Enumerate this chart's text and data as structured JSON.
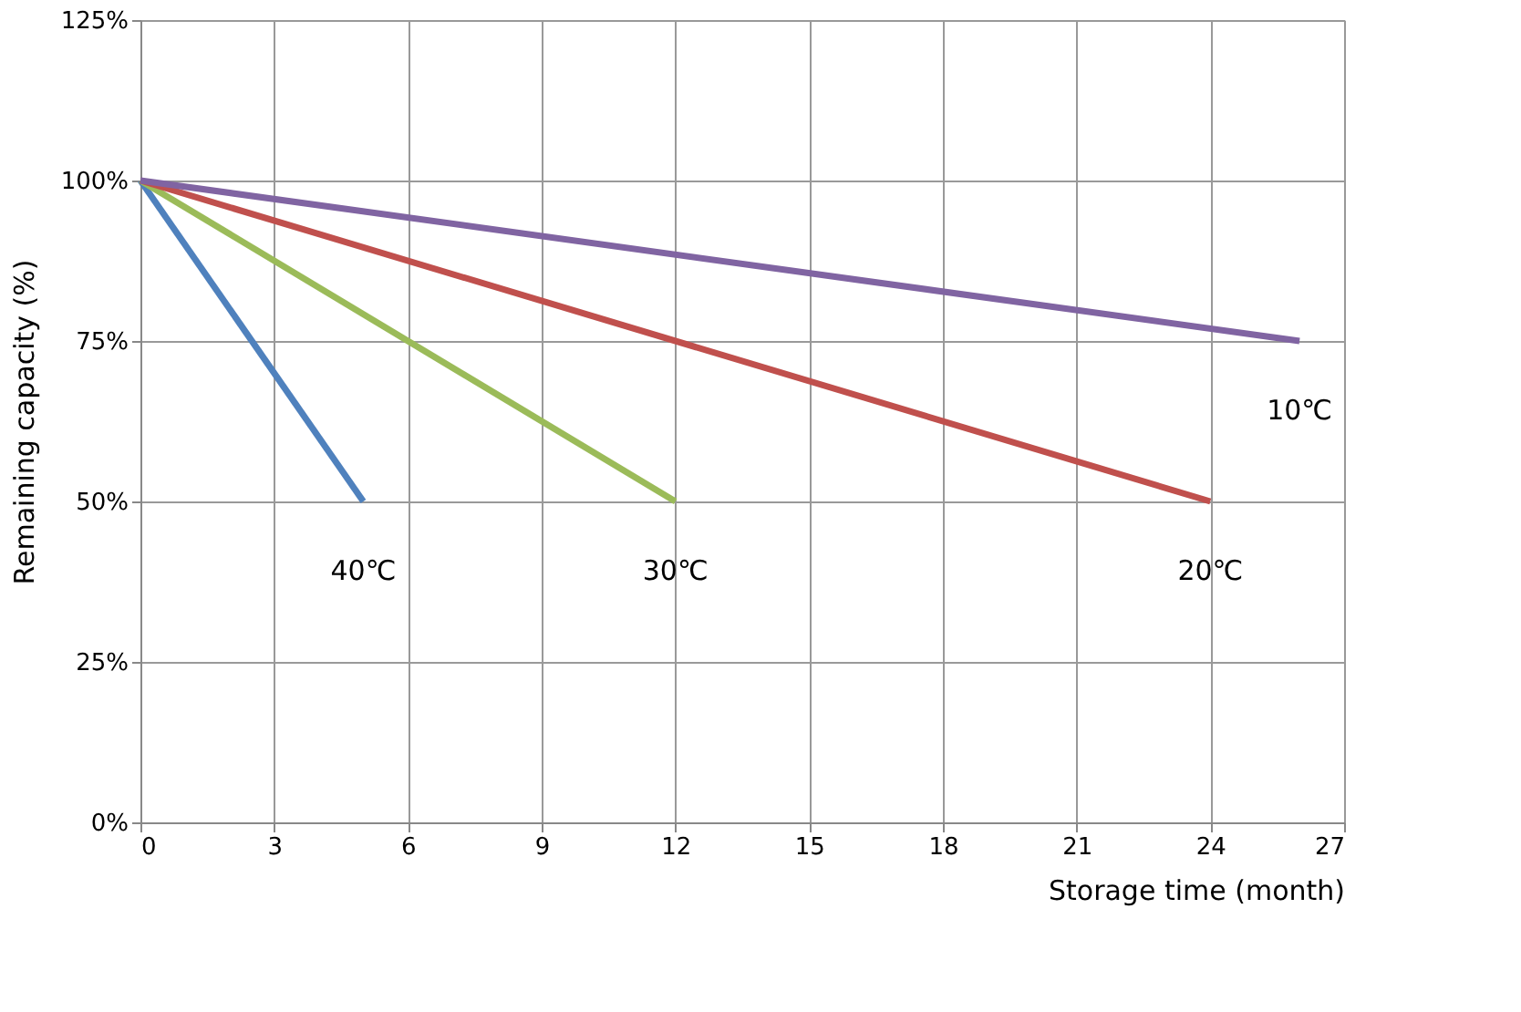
{
  "chart_data": {
    "type": "line",
    "xlabel": "Storage time (month)",
    "ylabel": "Remaining capacity (%)",
    "series": [
      {
        "name": "40℃",
        "color": "#4f81bd",
        "x": [
          0,
          5
        ],
        "values": [
          100,
          50
        ]
      },
      {
        "name": "30℃",
        "color": "#9bbb59",
        "x": [
          0,
          12
        ],
        "values": [
          100,
          50
        ]
      },
      {
        "name": "20℃",
        "color": "#c0504d",
        "x": [
          0,
          24
        ],
        "values": [
          100,
          50
        ]
      },
      {
        "name": "10℃",
        "color": "#8064a2",
        "x": [
          0,
          26
        ],
        "values": [
          100,
          75
        ]
      }
    ],
    "xlim": [
      0,
      27
    ],
    "xticks": [
      0,
      3,
      6,
      9,
      12,
      15,
      18,
      21,
      24,
      27
    ],
    "ylim": [
      0,
      125
    ],
    "yticks": [
      {
        "value": 0,
        "label": "0%"
      },
      {
        "value": 25,
        "label": "25%"
      },
      {
        "value": 50,
        "label": "50%"
      },
      {
        "value": 75,
        "label": "75%"
      },
      {
        "value": 100,
        "label": "100%"
      },
      {
        "value": 125,
        "label": "125%"
      }
    ],
    "grid": true,
    "marker": "none",
    "line_style": "solid"
  }
}
